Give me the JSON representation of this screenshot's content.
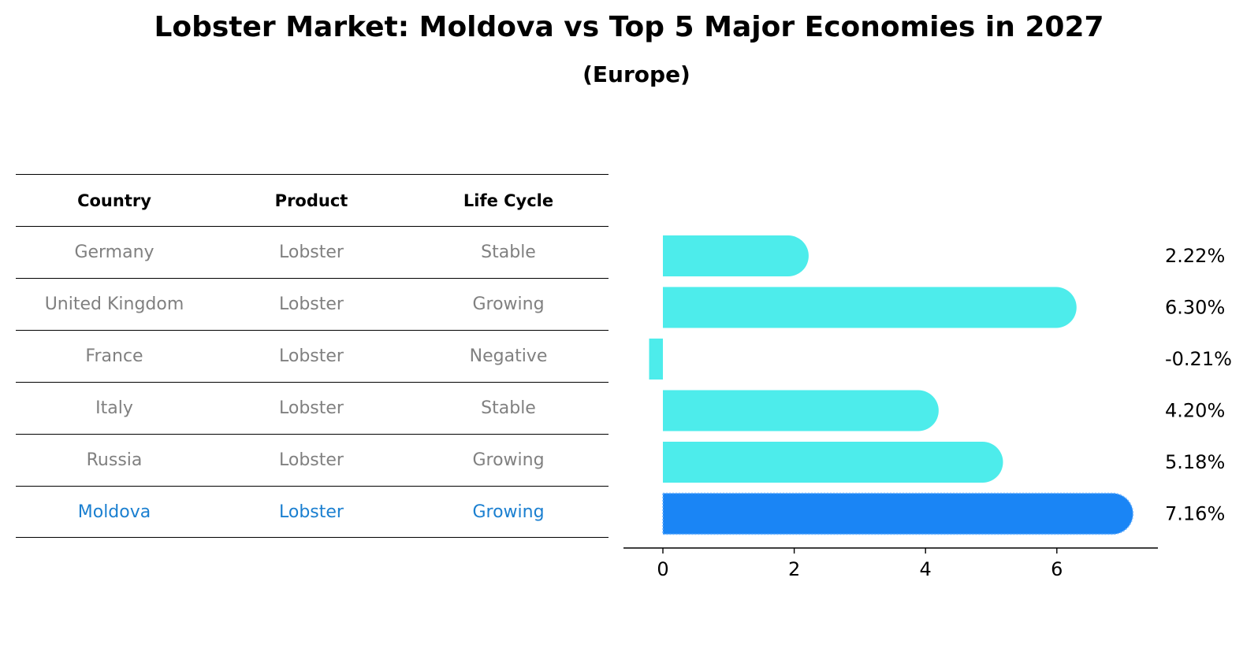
{
  "title": "Lobster Market: Moldova vs Top 5 Major Economies in 2027",
  "subtitle": "(Europe)",
  "table": {
    "headers": [
      "Country",
      "Product",
      "Life Cycle"
    ],
    "rows": [
      [
        "Germany",
        "Lobster",
        "Stable"
      ],
      [
        "United Kingdom",
        "Lobster",
        "Growing"
      ],
      [
        "France",
        "Lobster",
        "Negative"
      ],
      [
        "Italy",
        "Lobster",
        "Stable"
      ],
      [
        "Russia",
        "Lobster",
        "Growing"
      ],
      [
        "Moldova",
        "Lobster",
        "Growing"
      ]
    ]
  },
  "chart_data": {
    "type": "bar",
    "orientation": "horizontal",
    "categories": [
      "Germany",
      "United Kingdom",
      "France",
      "Italy",
      "Russia",
      "Moldova"
    ],
    "values": [
      2.22,
      6.3,
      -0.21,
      4.2,
      5.18,
      7.16
    ],
    "value_labels": [
      "2.22%",
      "6.30%",
      "-0.21%",
      "4.20%",
      "5.18%",
      "7.16%"
    ],
    "xticks": [
      0,
      2,
      4,
      6
    ],
    "xlim": [
      -0.6,
      7.5
    ],
    "highlight_category": "Moldova",
    "colors": {
      "default": "#4deceb",
      "highlight": "#1a85f5",
      "highlight_text": "#1a7fd0",
      "muted_text": "#808080"
    }
  }
}
